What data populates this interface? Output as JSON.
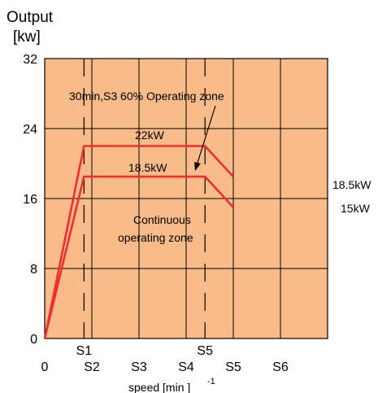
{
  "chart_data": {
    "type": "line",
    "ylabel_line1": "Output",
    "ylabel_line2": "[kw]",
    "xlabel": "speed [min ]",
    "xlabel_sup": "-1",
    "ylim": [
      0,
      32
    ],
    "yticks": [
      {
        "value": 0,
        "label": "0"
      },
      {
        "value": 8,
        "label": "8"
      },
      {
        "value": 16,
        "label": "16"
      },
      {
        "value": 24,
        "label": "24"
      },
      {
        "value": 32,
        "label": "32"
      }
    ],
    "xlim": [
      0,
      6
    ],
    "xticks_bottom": [
      {
        "value": 0,
        "label": "0"
      },
      {
        "value": 1,
        "label": "S2"
      },
      {
        "value": 2,
        "label": "S3"
      },
      {
        "value": 3,
        "label": "S4"
      },
      {
        "value": 4,
        "label": "S5"
      },
      {
        "value": 5,
        "label": "S6"
      }
    ],
    "xticks_top": [
      {
        "value": 0.833,
        "label": "S1"
      },
      {
        "value": 3.4,
        "label": "S5"
      }
    ],
    "grid": true,
    "zone_color": "#f9bb8a",
    "line_color": "#ee2f2f",
    "series": [
      {
        "x": [
          0,
          0.833,
          3.4,
          4
        ],
        "y": [
          0,
          22,
          22,
          18.5
        ]
      },
      {
        "x": [
          0,
          0.833,
          3.4,
          4
        ],
        "y": [
          0,
          18.5,
          18.5,
          15
        ]
      }
    ],
    "annotations": {
      "zone_s3": "30min,S3 60% Operating zone",
      "line_22kw": "22kW",
      "line_185kw": "18.5kW",
      "continuous_1": "Continuous",
      "continuous_2": "operating zone",
      "end_upper": "18.5kW",
      "end_lower": "15kW"
    }
  }
}
